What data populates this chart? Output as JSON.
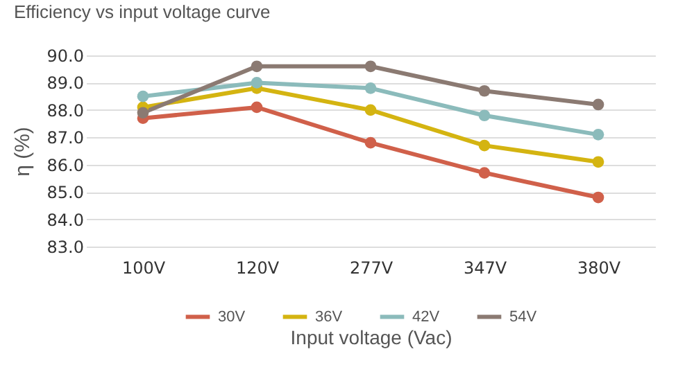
{
  "chart_data": {
    "type": "line",
    "title": "Efficiency vs input voltage curve",
    "xlabel": "Input voltage (Vac)",
    "ylabel": "η (%)",
    "categories": [
      "100V",
      "120V",
      "277V",
      "347V",
      "380V"
    ],
    "series": [
      {
        "name": "30V",
        "color": "#d0604a",
        "values": [
          87.7,
          88.1,
          86.8,
          85.7,
          84.8
        ]
      },
      {
        "name": "36V",
        "color": "#d4b411",
        "values": [
          88.1,
          88.8,
          88.0,
          86.7,
          86.1
        ]
      },
      {
        "name": "42V",
        "color": "#8bbbbb",
        "values": [
          88.5,
          89.0,
          88.8,
          87.8,
          87.1
        ]
      },
      {
        "name": "54V",
        "color": "#8b7a72",
        "values": [
          87.9,
          89.6,
          89.6,
          88.7,
          88.2
        ]
      }
    ],
    "ylim": [
      83,
      90
    ],
    "yticks": [
      {
        "value": 83,
        "label": "83.0"
      },
      {
        "value": 84,
        "label": "84.0"
      },
      {
        "value": 85,
        "label": "85.0"
      },
      {
        "value": 86,
        "label": "86.0"
      },
      {
        "value": 87,
        "label": "87.0"
      },
      {
        "value": 88,
        "label": "88.0"
      },
      {
        "value": 89,
        "label": "89.0"
      },
      {
        "value": 90,
        "label": "90.0"
      }
    ],
    "grid": "y",
    "legend": "bottom",
    "marker": "circle",
    "line_style": "solid"
  }
}
